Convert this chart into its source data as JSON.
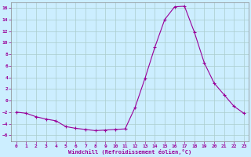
{
  "x": [
    0,
    1,
    2,
    3,
    4,
    5,
    6,
    7,
    8,
    9,
    10,
    11,
    12,
    13,
    14,
    15,
    16,
    17,
    18,
    19,
    20,
    21,
    22,
    23
  ],
  "y": [
    -2.0,
    -2.2,
    -2.8,
    -3.2,
    -3.5,
    -4.5,
    -4.8,
    -5.0,
    -5.2,
    -5.1,
    -5.0,
    -4.9,
    -1.2,
    3.8,
    9.2,
    14.0,
    16.2,
    16.3,
    11.8,
    6.5,
    3.0,
    1.0,
    -1.0,
    -2.2
  ],
  "line_color": "#990099",
  "marker": "+",
  "marker_size": 3,
  "marker_lw": 0.8,
  "line_width": 0.8,
  "bg_color": "#cceeff",
  "grid_color": "#aacccc",
  "xlabel": "Windchill (Refroidissement éolien,°C)",
  "ylim": [
    -7,
    17
  ],
  "yticks": [
    -6,
    -4,
    -2,
    0,
    2,
    4,
    6,
    8,
    10,
    12,
    14,
    16
  ],
  "xlim": [
    -0.5,
    23.5
  ],
  "xticks": [
    0,
    1,
    2,
    3,
    4,
    5,
    6,
    7,
    8,
    9,
    10,
    11,
    12,
    13,
    14,
    15,
    16,
    17,
    18,
    19,
    20,
    21,
    22,
    23
  ],
  "tick_labelsize": 4.5,
  "xlabel_fontsize": 5.0
}
